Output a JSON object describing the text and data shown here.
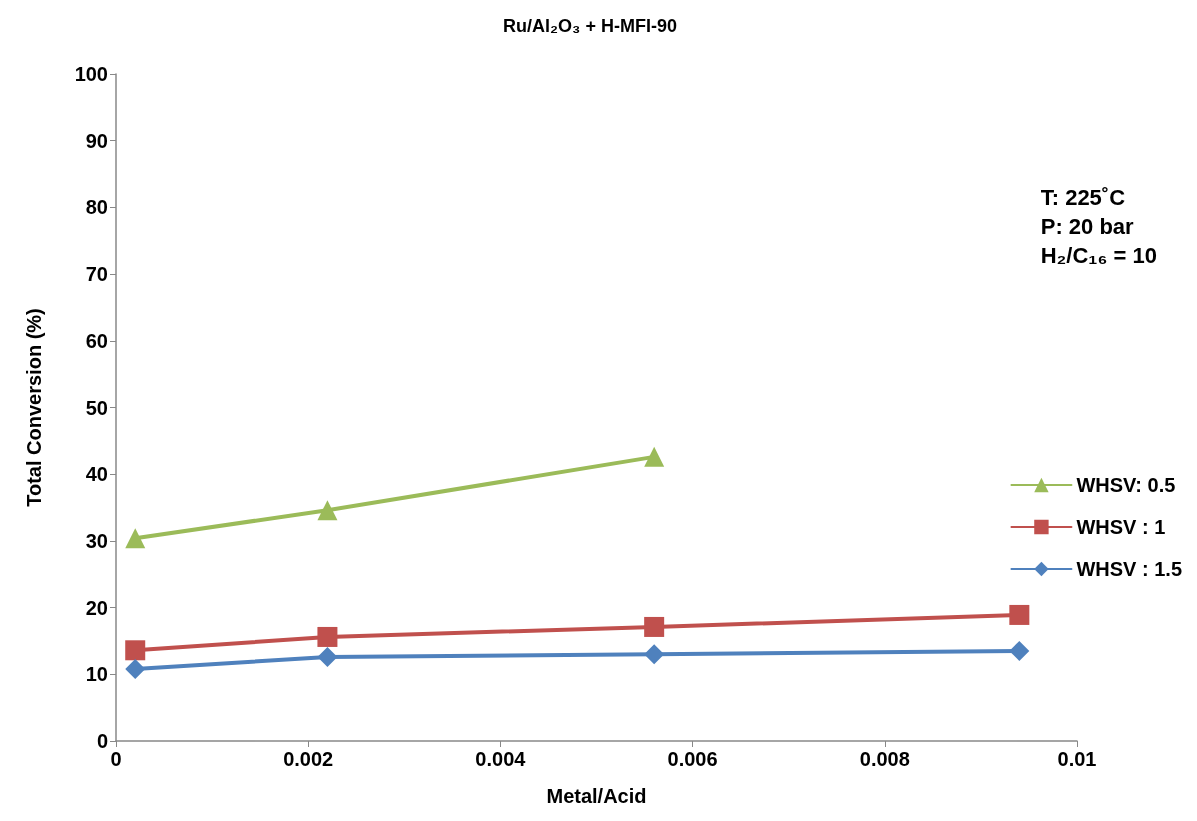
{
  "chart_data": {
    "type": "line",
    "title": "Ru/Al₂O₃ + H-MFI-90",
    "xlabel": "Metal/Acid",
    "ylabel": "Total Conversion (%)",
    "annotations": [
      "T: 225˚C\nP: 20 bar\nH₂/C₁₆ = 10"
    ],
    "series": [
      {
        "name": "WHSV: 0.5",
        "color": "#9bbb59",
        "marker": "triangle",
        "x": [
          0.0002,
          0.0022,
          0.0056
        ],
        "values": [
          30.4,
          34.6,
          42.6
        ]
      },
      {
        "name": "WHSV : 1",
        "color": "#c0504d",
        "marker": "square",
        "x": [
          0.0002,
          0.0022,
          0.0056,
          0.0094
        ],
        "values": [
          13.6,
          15.6,
          17.1,
          18.9
        ]
      },
      {
        "name": "WHSV : 1.5",
        "color": "#4f81bd",
        "marker": "diamond",
        "x": [
          0.0002,
          0.0022,
          0.0056,
          0.0094
        ],
        "values": [
          10.8,
          12.6,
          13.0,
          13.5
        ]
      }
    ],
    "xlim": [
      0,
      0.01
    ],
    "xticks": [
      0,
      0.002,
      0.004,
      0.006,
      0.008,
      0.01
    ],
    "ylim": [
      0,
      100
    ],
    "yticks": [
      0,
      10,
      20,
      30,
      40,
      50,
      60,
      70,
      80,
      90,
      100
    ],
    "grid": false,
    "legend": "right",
    "line_style": "solid"
  }
}
